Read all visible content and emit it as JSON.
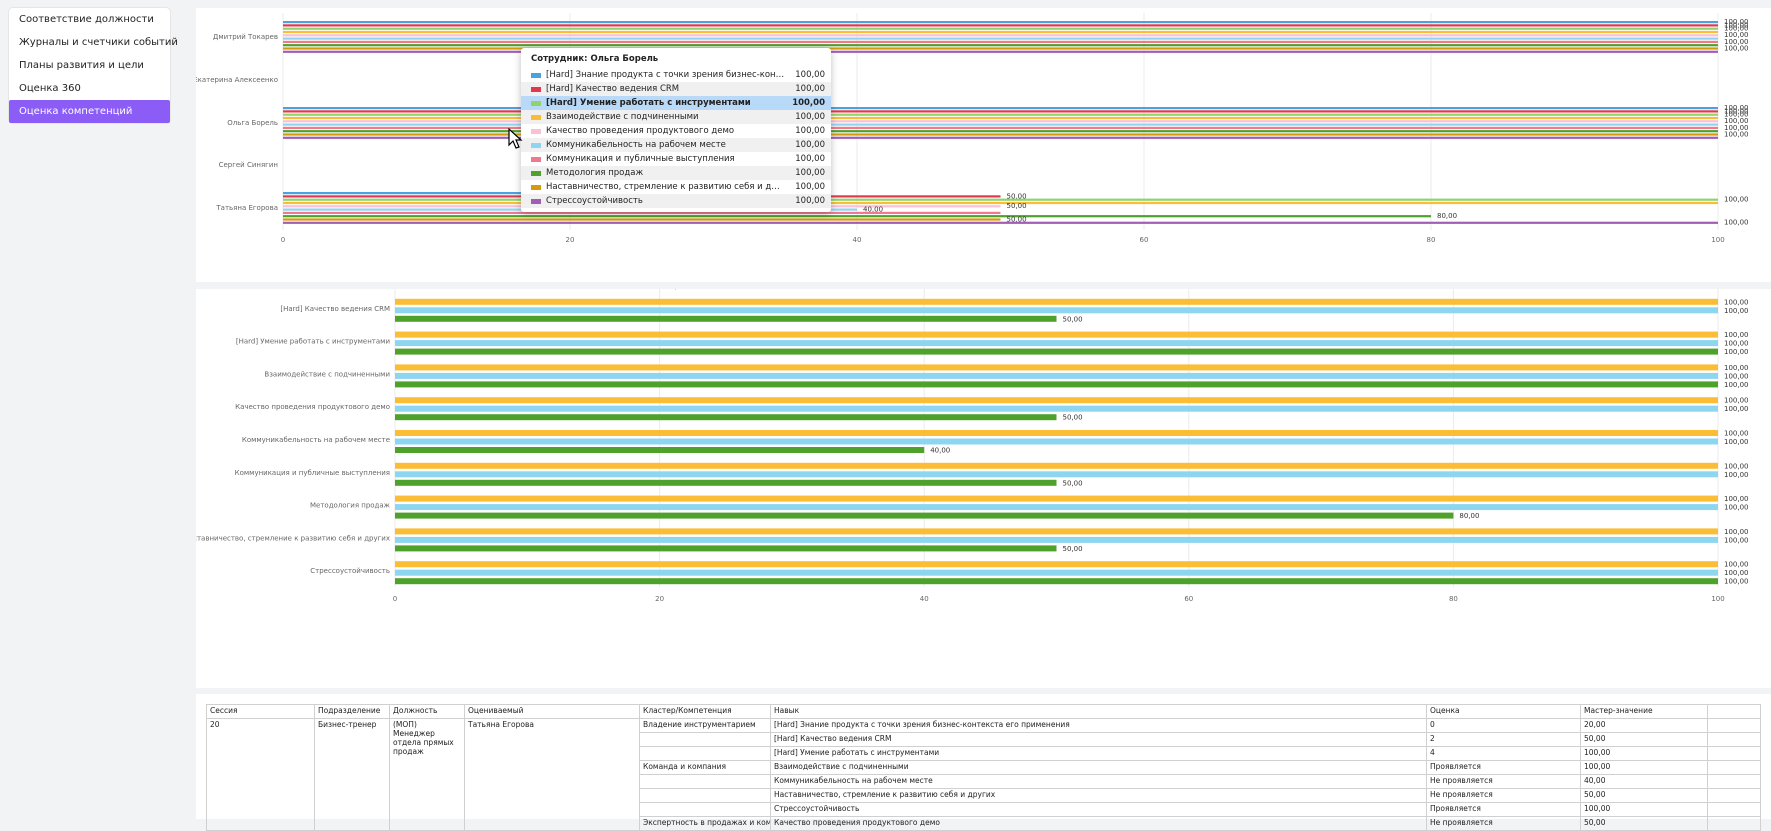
{
  "sidebar": {
    "items": [
      {
        "label": "Соответствие должности",
        "active": false
      },
      {
        "label": "Журналы и счетчики событий",
        "active": false
      },
      {
        "label": "Планы развития и цели",
        "active": false
      },
      {
        "label": "Оценка 360",
        "active": false
      },
      {
        "label": "Оценка компетенций",
        "active": true
      }
    ]
  },
  "chart_data": [
    {
      "type": "bar",
      "orientation": "horizontal",
      "categories": [
        "Дмитрий Токарев",
        "Екатерина Алексеенко",
        "Ольга Борель",
        "Сергей Синягин",
        "Татьяна Егорова"
      ],
      "xlim": [
        0,
        100
      ],
      "xticks": [
        0,
        20,
        40,
        60,
        80,
        100
      ],
      "grid": true,
      "series": [
        {
          "name": "[Hard] Знание продукта с точки зрения бизнес-контекста его п...",
          "color": "#4aa3df",
          "values": [
            100,
            null,
            100,
            null,
            20
          ],
          "labels": [
            "100,00",
            "",
            "100,00",
            "",
            "20,00"
          ]
        },
        {
          "name": "[Hard] Качество ведения CRM",
          "color": "#e0394f",
          "values": [
            100,
            null,
            100,
            null,
            50
          ],
          "labels": [
            "100,00",
            "",
            "100,00",
            "",
            "50,00"
          ]
        },
        {
          "name": "[Hard] Умение работать с инструментами",
          "color": "#8ed36b",
          "values": [
            100,
            null,
            100,
            null,
            100
          ],
          "labels": [
            "100,00",
            "",
            "100,00",
            "",
            "100,00"
          ]
        },
        {
          "name": "Взаимодействие с подчиненными",
          "color": "#fbbd35",
          "values": [
            100,
            null,
            100,
            null,
            100
          ],
          "labels": [
            "",
            "",
            "",
            "",
            ""
          ]
        },
        {
          "name": "Качество проведения продуктового демо",
          "color": "#f9c0d6",
          "values": [
            100,
            null,
            100,
            null,
            50
          ],
          "labels": [
            "100,00",
            "",
            "100,00",
            "",
            "50,00"
          ]
        },
        {
          "name": "Коммуникабельность на рабочем месте",
          "color": "#8ed6f0",
          "values": [
            100,
            null,
            100,
            null,
            40
          ],
          "labels": [
            "",
            "",
            "",
            "",
            "40,00"
          ]
        },
        {
          "name": "Коммуникация и публичные выступления",
          "color": "#f1788e",
          "values": [
            100,
            null,
            100,
            null,
            50
          ],
          "labels": [
            "100,00",
            "",
            "100,00",
            "",
            ""
          ]
        },
        {
          "name": "Методология продаж",
          "color": "#4ea22c",
          "values": [
            100,
            null,
            100,
            null,
            80
          ],
          "labels": [
            "",
            "",
            "",
            "",
            "80,00"
          ]
        },
        {
          "name": "Наставничество, стремление к развитию себя и других",
          "color": "#d49a0c",
          "values": [
            100,
            null,
            100,
            null,
            50
          ],
          "labels": [
            "100,00",
            "",
            "100,00",
            "",
            "50,00"
          ]
        },
        {
          "name": "Стрессоустойчивость",
          "color": "#a05fb5",
          "values": [
            100,
            null,
            100,
            null,
            100
          ],
          "labels": [
            "",
            "",
            "",
            "",
            "100,00"
          ]
        }
      ]
    },
    {
      "type": "bar",
      "orientation": "horizontal",
      "categories": [
        "[Hard] Знание продукта с точки зрения бизнес-контекста его применения",
        "[Hard] Качество ведения CRM",
        "[Hard] Умение работать с инструментами",
        "Взаимодействие с подчиненными",
        "Качество проведения продуктового демо",
        "Коммуникабельность на рабочем месте",
        "Коммуникация и публичные выступления",
        "Методология продаж",
        "Наставничество, стремление к развитию себя и других",
        "Стрессоустойчивость"
      ],
      "xlim": [
        0,
        100
      ],
      "xticks": [
        0,
        20,
        40,
        60,
        80,
        100
      ],
      "grid": true,
      "series": [
        {
          "color": "#fbbd35",
          "values": [
            100,
            100,
            100,
            100,
            100,
            100,
            100,
            100,
            100,
            100
          ]
        },
        {
          "color": "#8ed6f0",
          "values": [
            100,
            100,
            100,
            100,
            100,
            100,
            100,
            100,
            100,
            100
          ]
        },
        {
          "color": "#4ea22c",
          "values": [
            20,
            50,
            100,
            100,
            50,
            40,
            50,
            80,
            50,
            100
          ]
        }
      ]
    }
  ],
  "tooltip": {
    "title": "Сотрудник: Ольга Борель",
    "highlighted_index": 2,
    "rows": [
      {
        "label": "[Hard] Знание продукта с точки зрения бизнес-контекста его п...",
        "value": "100,00",
        "color": "#4aa3df"
      },
      {
        "label": "[Hard] Качество ведения CRM",
        "value": "100,00",
        "color": "#e0394f"
      },
      {
        "label": "[Hard] Умение работать с инструментами",
        "value": "100,00",
        "color": "#8ed36b"
      },
      {
        "label": "Взаимодействие с подчиненными",
        "value": "100,00",
        "color": "#fbbd35"
      },
      {
        "label": "Качество проведения продуктового демо",
        "value": "100,00",
        "color": "#f9c0d6"
      },
      {
        "label": "Коммуникабельность на рабочем месте",
        "value": "100,00",
        "color": "#8ed6f0"
      },
      {
        "label": "Коммуникация и публичные выступления",
        "value": "100,00",
        "color": "#f1788e"
      },
      {
        "label": "Методология продаж",
        "value": "100,00",
        "color": "#4ea22c"
      },
      {
        "label": "Наставничество, стремление к развитию себя и других",
        "value": "100,00",
        "color": "#d49a0c"
      },
      {
        "label": "Стрессоустойчивость",
        "value": "100,00",
        "color": "#a05fb5"
      }
    ]
  },
  "table": {
    "headers": [
      "Сессия",
      "Подразделение",
      "Должность",
      "Оцениваемый",
      "Кластер/Компетенция",
      "Навык",
      "Оценка",
      "Мастер-значение",
      ""
    ],
    "session": "20",
    "department": "Бизнес-тренер",
    "position": "(МОП) Менеджер отдела прямых продаж",
    "employee": "Татьяна Егорова",
    "rows": [
      {
        "cluster": "Владение инструментарием",
        "skill": "[Hard] Знание продукта с точки зрения бизнес-контекста его применения",
        "score": "0",
        "master": "20,00"
      },
      {
        "cluster": "",
        "skill": "[Hard] Качество ведения CRM",
        "score": "2",
        "master": "50,00"
      },
      {
        "cluster": "",
        "skill": "[Hard] Умение работать с инструментами",
        "score": "4",
        "master": "100,00"
      },
      {
        "cluster": "Команда и компания",
        "skill": "Взаимодействие с подчиненными",
        "score": "Проявляется",
        "master": "100,00"
      },
      {
        "cluster": "",
        "skill": "Коммуникабельность на рабочем месте",
        "score": "Не проявляется",
        "master": "40,00"
      },
      {
        "cluster": "",
        "skill": "Наставничество, стремление к развитию себя и других",
        "score": "Не проявляется",
        "master": "50,00"
      },
      {
        "cluster": "",
        "skill": "Стрессоустойчивость",
        "score": "Проявляется",
        "master": "100,00"
      },
      {
        "cluster": "Экспертность в продажах и коммуникации",
        "skill": "Качество проведения продуктового демо",
        "score": "Не проявляется",
        "master": "50,00"
      }
    ]
  }
}
